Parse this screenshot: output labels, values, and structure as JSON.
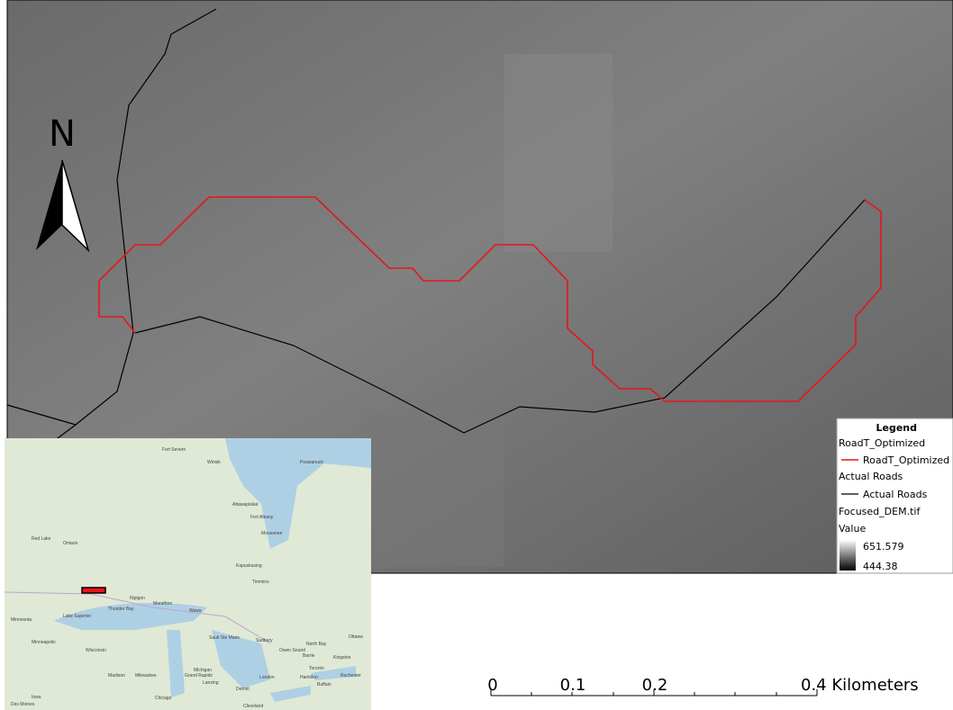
{
  "north_arrow": {
    "label": "N"
  },
  "legend": {
    "title": "Legend",
    "items": [
      {
        "group": "RoadT_Optimized",
        "label": "RoadT_Optimized"
      },
      {
        "group": "Actual Roads",
        "label": "Actual Roads"
      }
    ],
    "raster": {
      "group": "Focused_DEM.tif",
      "field": "Value",
      "high": "651.579",
      "low": "444.38"
    }
  },
  "scale_bar": {
    "labels": [
      "0",
      "0.1",
      "0.2",
      "0.4 Kilometers"
    ]
  },
  "inset_map": {
    "places": [
      "Fort Severn",
      "Winisk",
      "Peawanuck",
      "Ontario",
      "Red Lake",
      "Attawapiskat",
      "Fort Albany",
      "Moosonee",
      "Nipigon",
      "Thunder Bay",
      "Marathon",
      "Wawa",
      "Timmins",
      "Kapuskasing",
      "Sault Ste Marie",
      "Sudbury",
      "North Bay",
      "Ottawa",
      "Kingston",
      "Toronto",
      "Barrie",
      "Owen Sound",
      "Hamilton",
      "Buffalo",
      "Rochester",
      "London",
      "Detroit",
      "Lansing",
      "Grand Rapids",
      "Michigan",
      "Milwaukee",
      "Madison",
      "Chicago",
      "Wisconsin",
      "Minnesota",
      "Minneapolis",
      "Des Moines",
      "Iowa",
      "Cleveland",
      "Lake Superior"
    ]
  }
}
